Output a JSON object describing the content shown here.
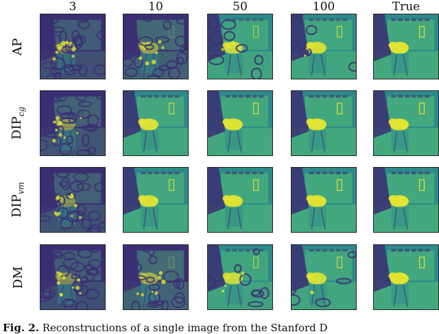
{
  "columns": [
    "3",
    "10",
    "50",
    "100",
    "True"
  ],
  "rows": [
    {
      "base": "AP",
      "sub": ""
    },
    {
      "base": "DIP",
      "sub": "cg"
    },
    {
      "base": "DIP",
      "sub": "vm"
    },
    {
      "base": "DM",
      "sub": ""
    }
  ],
  "caption": {
    "label": "Fig. 2.",
    "text": "Reconstructions of a single image from the Stanford D"
  },
  "colors": {
    "dark": "#3b2f73",
    "mid": "#2d8a8a",
    "light": "#4cb27a",
    "bright": "#e2e432"
  }
}
